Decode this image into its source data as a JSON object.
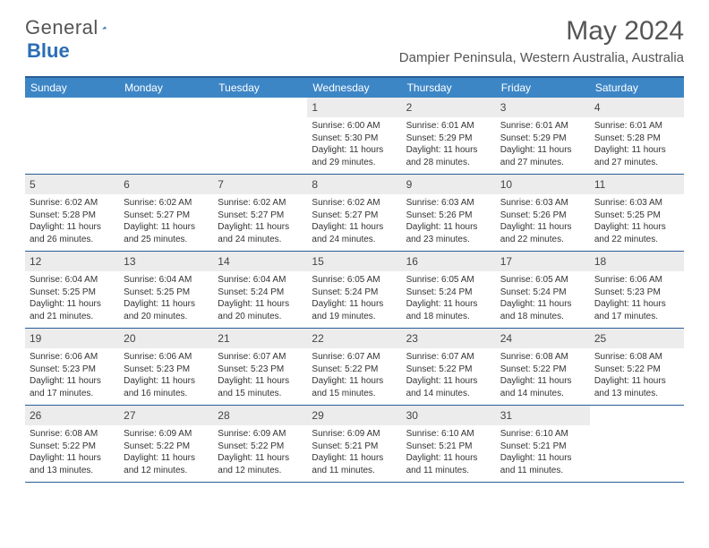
{
  "logo": {
    "text1": "General",
    "text2": "Blue"
  },
  "title": "May 2024",
  "location": "Dampier Peninsula, Western Australia, Australia",
  "colors": {
    "header_bar": "#3d86c6",
    "border": "#285c97",
    "daynum_bg": "#ececec",
    "text": "#333333",
    "title": "#555555"
  },
  "weekdays": [
    "Sunday",
    "Monday",
    "Tuesday",
    "Wednesday",
    "Thursday",
    "Friday",
    "Saturday"
  ],
  "weeks": [
    [
      {
        "empty": true
      },
      {
        "empty": true
      },
      {
        "empty": true
      },
      {
        "num": "1",
        "sunrise": "6:00 AM",
        "sunset": "5:30 PM",
        "daylight": "11 hours and 29 minutes."
      },
      {
        "num": "2",
        "sunrise": "6:01 AM",
        "sunset": "5:29 PM",
        "daylight": "11 hours and 28 minutes."
      },
      {
        "num": "3",
        "sunrise": "6:01 AM",
        "sunset": "5:29 PM",
        "daylight": "11 hours and 27 minutes."
      },
      {
        "num": "4",
        "sunrise": "6:01 AM",
        "sunset": "5:28 PM",
        "daylight": "11 hours and 27 minutes."
      }
    ],
    [
      {
        "num": "5",
        "sunrise": "6:02 AM",
        "sunset": "5:28 PM",
        "daylight": "11 hours and 26 minutes."
      },
      {
        "num": "6",
        "sunrise": "6:02 AM",
        "sunset": "5:27 PM",
        "daylight": "11 hours and 25 minutes."
      },
      {
        "num": "7",
        "sunrise": "6:02 AM",
        "sunset": "5:27 PM",
        "daylight": "11 hours and 24 minutes."
      },
      {
        "num": "8",
        "sunrise": "6:02 AM",
        "sunset": "5:27 PM",
        "daylight": "11 hours and 24 minutes."
      },
      {
        "num": "9",
        "sunrise": "6:03 AM",
        "sunset": "5:26 PM",
        "daylight": "11 hours and 23 minutes."
      },
      {
        "num": "10",
        "sunrise": "6:03 AM",
        "sunset": "5:26 PM",
        "daylight": "11 hours and 22 minutes."
      },
      {
        "num": "11",
        "sunrise": "6:03 AM",
        "sunset": "5:25 PM",
        "daylight": "11 hours and 22 minutes."
      }
    ],
    [
      {
        "num": "12",
        "sunrise": "6:04 AM",
        "sunset": "5:25 PM",
        "daylight": "11 hours and 21 minutes."
      },
      {
        "num": "13",
        "sunrise": "6:04 AM",
        "sunset": "5:25 PM",
        "daylight": "11 hours and 20 minutes."
      },
      {
        "num": "14",
        "sunrise": "6:04 AM",
        "sunset": "5:24 PM",
        "daylight": "11 hours and 20 minutes."
      },
      {
        "num": "15",
        "sunrise": "6:05 AM",
        "sunset": "5:24 PM",
        "daylight": "11 hours and 19 minutes."
      },
      {
        "num": "16",
        "sunrise": "6:05 AM",
        "sunset": "5:24 PM",
        "daylight": "11 hours and 18 minutes."
      },
      {
        "num": "17",
        "sunrise": "6:05 AM",
        "sunset": "5:24 PM",
        "daylight": "11 hours and 18 minutes."
      },
      {
        "num": "18",
        "sunrise": "6:06 AM",
        "sunset": "5:23 PM",
        "daylight": "11 hours and 17 minutes."
      }
    ],
    [
      {
        "num": "19",
        "sunrise": "6:06 AM",
        "sunset": "5:23 PM",
        "daylight": "11 hours and 17 minutes."
      },
      {
        "num": "20",
        "sunrise": "6:06 AM",
        "sunset": "5:23 PM",
        "daylight": "11 hours and 16 minutes."
      },
      {
        "num": "21",
        "sunrise": "6:07 AM",
        "sunset": "5:23 PM",
        "daylight": "11 hours and 15 minutes."
      },
      {
        "num": "22",
        "sunrise": "6:07 AM",
        "sunset": "5:22 PM",
        "daylight": "11 hours and 15 minutes."
      },
      {
        "num": "23",
        "sunrise": "6:07 AM",
        "sunset": "5:22 PM",
        "daylight": "11 hours and 14 minutes."
      },
      {
        "num": "24",
        "sunrise": "6:08 AM",
        "sunset": "5:22 PM",
        "daylight": "11 hours and 14 minutes."
      },
      {
        "num": "25",
        "sunrise": "6:08 AM",
        "sunset": "5:22 PM",
        "daylight": "11 hours and 13 minutes."
      }
    ],
    [
      {
        "num": "26",
        "sunrise": "6:08 AM",
        "sunset": "5:22 PM",
        "daylight": "11 hours and 13 minutes."
      },
      {
        "num": "27",
        "sunrise": "6:09 AM",
        "sunset": "5:22 PM",
        "daylight": "11 hours and 12 minutes."
      },
      {
        "num": "28",
        "sunrise": "6:09 AM",
        "sunset": "5:22 PM",
        "daylight": "11 hours and 12 minutes."
      },
      {
        "num": "29",
        "sunrise": "6:09 AM",
        "sunset": "5:21 PM",
        "daylight": "11 hours and 11 minutes."
      },
      {
        "num": "30",
        "sunrise": "6:10 AM",
        "sunset": "5:21 PM",
        "daylight": "11 hours and 11 minutes."
      },
      {
        "num": "31",
        "sunrise": "6:10 AM",
        "sunset": "5:21 PM",
        "daylight": "11 hours and 11 minutes."
      },
      {
        "empty": true
      }
    ]
  ]
}
